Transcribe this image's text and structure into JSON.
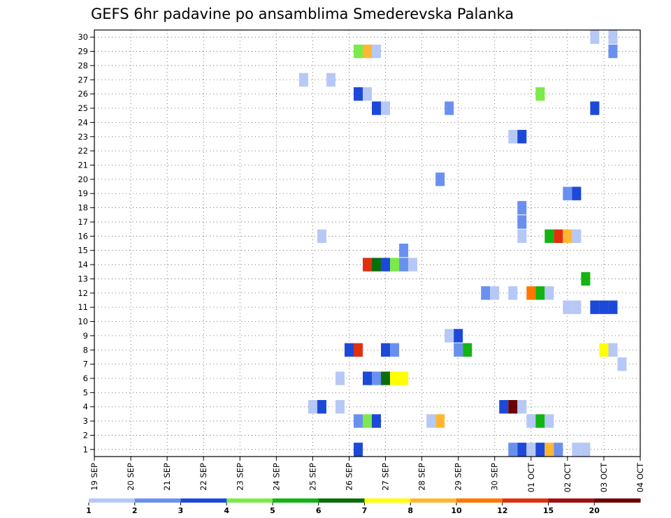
{
  "chart_data": {
    "type": "heatmap",
    "title": "GEFS 6hr padavine po ansamblima Smederevska Palanka",
    "x_tick_labels": [
      "19 SEP",
      "20 SEP",
      "21 SEP",
      "22 SEP",
      "23 SEP",
      "24 SEP",
      "25 SEP",
      "26 SEP",
      "27 SEP",
      "28 SEP",
      "29 SEP",
      "30 SEP",
      "01 OCT",
      "02 OCT",
      "03 OCT",
      "04 OCT"
    ],
    "y_tick_labels": [
      "1",
      "2",
      "3",
      "4",
      "5",
      "6",
      "7",
      "8",
      "9",
      "10",
      "11",
      "12",
      "13",
      "14",
      "15",
      "16",
      "17",
      "18",
      "19",
      "20",
      "21",
      "22",
      "23",
      "24",
      "25",
      "26",
      "27",
      "28",
      "29",
      "30"
    ],
    "xlim_days": [
      0,
      15
    ],
    "ylim": [
      0.5,
      30.5
    ],
    "grid": true,
    "legend_position": "bottom",
    "legend": {
      "colors": [
        "#b6c8f5",
        "#6a90ef",
        "#1c49d8",
        "#7cea48",
        "#13b413",
        "#0a6e0a",
        "#ffff00",
        "#ffb733",
        "#ff7700",
        "#e0300e",
        "#a01010",
        "#6b0000"
      ],
      "labels": [
        "1",
        "2",
        "3",
        "4",
        "5",
        "6",
        "7",
        "8",
        "10",
        "12",
        "15",
        "20"
      ]
    },
    "cell_width_days": 0.25,
    "cells": [
      {
        "m": 30,
        "t": 13.75,
        "c": 0
      },
      {
        "m": 30,
        "t": 14.25,
        "c": 0
      },
      {
        "m": 29,
        "t": 7.25,
        "c": 3
      },
      {
        "m": 29,
        "t": 7.5,
        "c": 7
      },
      {
        "m": 29,
        "t": 7.75,
        "c": 0
      },
      {
        "m": 29,
        "t": 14.25,
        "c": 1
      },
      {
        "m": 27,
        "t": 5.75,
        "c": 0
      },
      {
        "m": 27,
        "t": 6.5,
        "c": 0
      },
      {
        "m": 26,
        "t": 7.25,
        "c": 2
      },
      {
        "m": 26,
        "t": 7.5,
        "c": 0
      },
      {
        "m": 26,
        "t": 12.25,
        "c": 3
      },
      {
        "m": 25,
        "t": 7.75,
        "c": 2
      },
      {
        "m": 25,
        "t": 8.0,
        "c": 0
      },
      {
        "m": 25,
        "t": 9.75,
        "c": 1
      },
      {
        "m": 25,
        "t": 13.75,
        "c": 2
      },
      {
        "m": 23,
        "t": 11.5,
        "c": 0
      },
      {
        "m": 23,
        "t": 11.75,
        "c": 2
      },
      {
        "m": 20,
        "t": 9.5,
        "c": 1
      },
      {
        "m": 19,
        "t": 13.0,
        "c": 1
      },
      {
        "m": 19,
        "t": 13.25,
        "c": 2
      },
      {
        "m": 18,
        "t": 11.75,
        "c": 1
      },
      {
        "m": 17,
        "t": 11.75,
        "c": 1
      },
      {
        "m": 16,
        "t": 6.25,
        "c": 0
      },
      {
        "m": 16,
        "t": 11.75,
        "c": 0
      },
      {
        "m": 16,
        "t": 12.5,
        "c": 4
      },
      {
        "m": 16,
        "t": 12.75,
        "c": 9
      },
      {
        "m": 16,
        "t": 13.0,
        "c": 7
      },
      {
        "m": 16,
        "t": 13.25,
        "c": 0
      },
      {
        "m": 15,
        "t": 8.5,
        "c": 1
      },
      {
        "m": 14,
        "t": 7.5,
        "c": 9
      },
      {
        "m": 14,
        "t": 7.75,
        "c": 5
      },
      {
        "m": 14,
        "t": 8.0,
        "c": 2
      },
      {
        "m": 14,
        "t": 8.25,
        "c": 3
      },
      {
        "m": 14,
        "t": 8.5,
        "c": 1
      },
      {
        "m": 14,
        "t": 8.75,
        "c": 0
      },
      {
        "m": 13,
        "t": 13.5,
        "c": 4
      },
      {
        "m": 12,
        "t": 10.75,
        "c": 1
      },
      {
        "m": 12,
        "t": 11.0,
        "c": 0
      },
      {
        "m": 12,
        "t": 11.5,
        "c": 0
      },
      {
        "m": 12,
        "t": 12.0,
        "c": 8
      },
      {
        "m": 12,
        "t": 12.25,
        "c": 4
      },
      {
        "m": 12,
        "t": 12.5,
        "c": 0
      },
      {
        "m": 11,
        "t": 13.0,
        "c": 0
      },
      {
        "m": 11,
        "t": 13.25,
        "c": 0
      },
      {
        "m": 11,
        "t": 13.75,
        "c": 2
      },
      {
        "m": 11,
        "t": 14.0,
        "c": 2
      },
      {
        "m": 11,
        "t": 14.25,
        "c": 2
      },
      {
        "m": 9,
        "t": 9.75,
        "c": 0
      },
      {
        "m": 9,
        "t": 10.0,
        "c": 2
      },
      {
        "m": 8,
        "t": 7.0,
        "c": 2
      },
      {
        "m": 8,
        "t": 7.25,
        "c": 9
      },
      {
        "m": 8,
        "t": 8.0,
        "c": 2
      },
      {
        "m": 8,
        "t": 8.25,
        "c": 1
      },
      {
        "m": 8,
        "t": 10.0,
        "c": 1
      },
      {
        "m": 8,
        "t": 10.25,
        "c": 4
      },
      {
        "m": 8,
        "t": 14.0,
        "c": 6
      },
      {
        "m": 8,
        "t": 14.25,
        "c": 0
      },
      {
        "m": 7,
        "t": 14.5,
        "c": 0
      },
      {
        "m": 6,
        "t": 6.75,
        "c": 0
      },
      {
        "m": 6,
        "t": 7.5,
        "c": 2
      },
      {
        "m": 6,
        "t": 7.75,
        "c": 1
      },
      {
        "m": 6,
        "t": 8.0,
        "c": 5
      },
      {
        "m": 6,
        "t": 8.25,
        "c": 6
      },
      {
        "m": 6,
        "t": 8.5,
        "c": 6
      },
      {
        "m": 4,
        "t": 6.0,
        "c": 0
      },
      {
        "m": 4,
        "t": 6.25,
        "c": 2
      },
      {
        "m": 4,
        "t": 6.75,
        "c": 0
      },
      {
        "m": 4,
        "t": 11.25,
        "c": 2
      },
      {
        "m": 4,
        "t": 11.5,
        "c": 11
      },
      {
        "m": 4,
        "t": 11.75,
        "c": 0
      },
      {
        "m": 3,
        "t": 7.25,
        "c": 1
      },
      {
        "m": 3,
        "t": 7.5,
        "c": 3
      },
      {
        "m": 3,
        "t": 7.75,
        "c": 2
      },
      {
        "m": 3,
        "t": 9.25,
        "c": 0
      },
      {
        "m": 3,
        "t": 9.5,
        "c": 7
      },
      {
        "m": 3,
        "t": 12.0,
        "c": 0
      },
      {
        "m": 3,
        "t": 12.25,
        "c": 4
      },
      {
        "m": 3,
        "t": 12.5,
        "c": 0
      },
      {
        "m": 1,
        "t": 7.25,
        "c": 2
      },
      {
        "m": 1,
        "t": 11.5,
        "c": 1
      },
      {
        "m": 1,
        "t": 11.75,
        "c": 2
      },
      {
        "m": 1,
        "t": 12.0,
        "c": 0
      },
      {
        "m": 1,
        "t": 12.25,
        "c": 2
      },
      {
        "m": 1,
        "t": 12.5,
        "c": 7
      },
      {
        "m": 1,
        "t": 12.75,
        "c": 1
      },
      {
        "m": 1,
        "t": 13.25,
        "c": 0
      },
      {
        "m": 1,
        "t": 13.5,
        "c": 0
      }
    ]
  }
}
